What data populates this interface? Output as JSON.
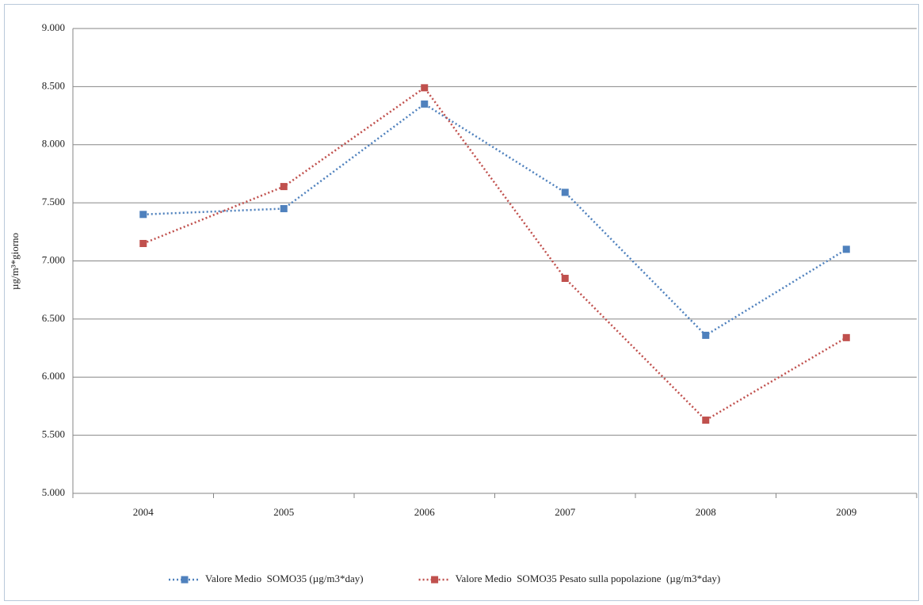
{
  "chart_data": {
    "type": "line",
    "y_label": "µg/m³*giorno",
    "categories": [
      "2004",
      "2005",
      "2006",
      "2007",
      "2008",
      "2009"
    ],
    "series": [
      {
        "name": "Valore Medio  SOMO35 (µg/m3*day)",
        "color": "#4f81bd",
        "values": [
          7400,
          7450,
          8350,
          7590,
          6360,
          7100
        ]
      },
      {
        "name": "Valore Medio  SOMO35 Pesato sulla popolazione  (µg/m3*day)",
        "color": "#c0504d",
        "values": [
          7150,
          7640,
          8490,
          6850,
          5630,
          6340
        ]
      }
    ],
    "ylim": [
      5000,
      9000
    ],
    "yticks": [
      {
        "value": 5000,
        "label": "5.000"
      },
      {
        "value": 5500,
        "label": "5.500"
      },
      {
        "value": 6000,
        "label": "6.000"
      },
      {
        "value": 6500,
        "label": "6.500"
      },
      {
        "value": 7000,
        "label": "7.000"
      },
      {
        "value": 7500,
        "label": "7.500"
      },
      {
        "value": 8000,
        "label": "8.000"
      },
      {
        "value": 8500,
        "label": "8.500"
      },
      {
        "value": 9000,
        "label": "9.000"
      }
    ],
    "grid": true,
    "legend": "bottom"
  }
}
